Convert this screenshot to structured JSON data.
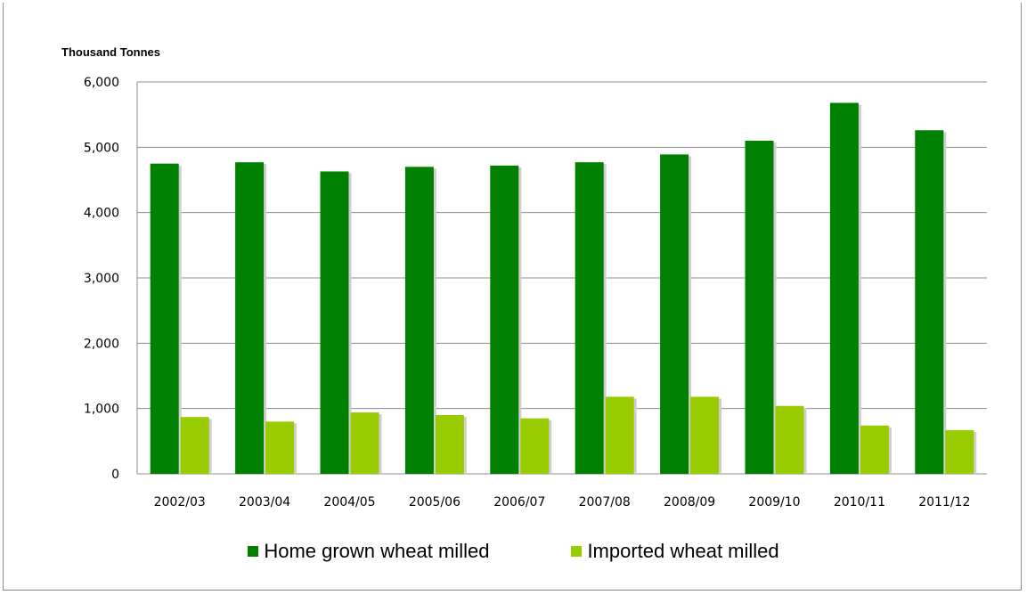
{
  "chart_data": {
    "type": "bar",
    "ylabel": "Thousand Tonnes",
    "ylim": [
      0,
      6000
    ],
    "yticks": [
      0,
      1000,
      2000,
      3000,
      4000,
      5000,
      6000
    ],
    "ytick_labels": [
      "0",
      "1,000",
      "2,000",
      "3,000",
      "4,000",
      "5,000",
      "6,000"
    ],
    "grid": true,
    "legend_placement": "bottom",
    "categories": [
      "2002/03",
      "2003/04",
      "2004/05",
      "2005/06",
      "2006/07",
      "2007/08",
      "2008/09",
      "2009/10",
      "2010/11",
      "2011/12"
    ],
    "series": [
      {
        "name": "Home grown wheat milled",
        "color": "#008000",
        "values": [
          4750,
          4770,
          4630,
          4700,
          4720,
          4770,
          4890,
          5100,
          5680,
          5260
        ]
      },
      {
        "name": "Imported wheat milled",
        "color": "#99cc00",
        "values": [
          870,
          800,
          940,
          900,
          850,
          1180,
          1180,
          1040,
          740,
          670
        ]
      }
    ]
  }
}
